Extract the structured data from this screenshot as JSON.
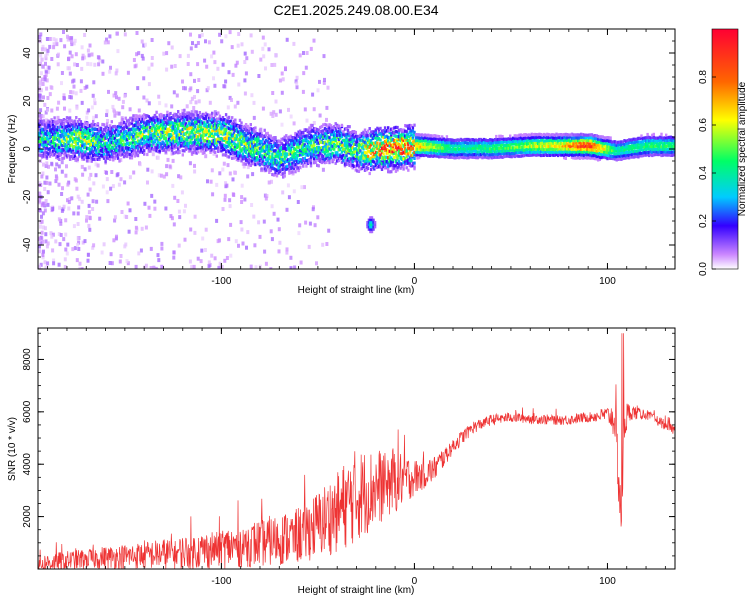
{
  "title": "C2E1.2025.249.08.00.E34",
  "chart_data": [
    {
      "type": "heatmap",
      "xlabel": "Height of straight line (km)",
      "ylabel": "Frequency (Hz)",
      "xlim": [
        -195,
        135
      ],
      "ylim": [
        -50,
        50
      ],
      "x_ticks": [
        -100,
        0,
        100
      ],
      "y_ticks": [
        -40,
        -20,
        0,
        20,
        40
      ],
      "grid": false,
      "colorbar": {
        "label": "Normalized spectral amplitude",
        "range": [
          0,
          1
        ],
        "ticks": [
          "0.0",
          "0.2",
          "0.4",
          "0.6",
          "0.8"
        ],
        "colors": [
          "#ffffff",
          "#cc88ff",
          "#3300ff",
          "#00ccff",
          "#00ff66",
          "#ffff00",
          "#ff6600",
          "#ff0033"
        ]
      },
      "ridge": [
        {
          "x": -190,
          "y": 5,
          "amp": 0.35
        },
        {
          "x": -175,
          "y": 5,
          "amp": 0.5
        },
        {
          "x": -160,
          "y": 3,
          "amp": 0.35
        },
        {
          "x": -140,
          "y": 7,
          "amp": 0.45
        },
        {
          "x": -120,
          "y": 8,
          "amp": 0.5
        },
        {
          "x": -100,
          "y": 7,
          "amp": 0.5
        },
        {
          "x": -85,
          "y": 2,
          "amp": 0.45
        },
        {
          "x": -70,
          "y": -3,
          "amp": 0.4
        },
        {
          "x": -55,
          "y": 2,
          "amp": 0.4
        },
        {
          "x": -40,
          "y": 3,
          "amp": 0.45
        },
        {
          "x": -30,
          "y": 0,
          "amp": 0.45
        },
        {
          "x": -15,
          "y": 1,
          "amp": 0.8
        },
        {
          "x": 0,
          "y": 2,
          "amp": 0.7
        },
        {
          "x": 20,
          "y": 1,
          "amp": 0.4
        },
        {
          "x": 40,
          "y": 1,
          "amp": 0.45
        },
        {
          "x": 60,
          "y": 2,
          "amp": 0.55
        },
        {
          "x": 75,
          "y": 2,
          "amp": 0.65
        },
        {
          "x": 90,
          "y": 2,
          "amp": 0.9
        },
        {
          "x": 104,
          "y": 0,
          "amp": 0.4
        },
        {
          "x": 120,
          "y": 2,
          "amp": 0.45
        },
        {
          "x": 135,
          "y": 2,
          "amp": 0.45
        }
      ],
      "spots": [
        {
          "x": -23,
          "y": -31,
          "amp": 0.4
        }
      ]
    },
    {
      "type": "line",
      "xlabel": "Height of straight line (km)",
      "ylabel": "SNR (10 * v/v)",
      "xlim": [
        -195,
        135
      ],
      "ylim": [
        0,
        9200
      ],
      "x_ticks": [
        -100,
        0,
        100
      ],
      "y_ticks": [
        2000,
        4000,
        6000,
        8000
      ],
      "grid": false,
      "color": "#ee3333",
      "x": [
        -195,
        -180,
        -165,
        -150,
        -135,
        -120,
        -105,
        -90,
        -75,
        -60,
        -50,
        -40,
        -30,
        -20,
        -10,
        0,
        10,
        20,
        30,
        40,
        50,
        60,
        70,
        80,
        90,
        100,
        104,
        107,
        109,
        112,
        120,
        130,
        135
      ],
      "y": [
        200,
        320,
        420,
        480,
        550,
        650,
        750,
        900,
        1050,
        1300,
        1700,
        2200,
        2800,
        3100,
        3400,
        3500,
        3800,
        4700,
        5400,
        5700,
        5800,
        5750,
        5700,
        5700,
        5800,
        5900,
        5700,
        2100,
        5700,
        6000,
        5900,
        5500,
        5300
      ],
      "noise_amp": [
        350,
        380,
        420,
        480,
        560,
        650,
        750,
        850,
        950,
        1100,
        1300,
        1600,
        1800,
        1500,
        1300,
        700,
        500,
        300,
        250,
        200,
        200,
        200,
        200,
        200,
        200,
        300,
        800,
        1500,
        800,
        300,
        200,
        200,
        200
      ],
      "annotations": []
    }
  ]
}
